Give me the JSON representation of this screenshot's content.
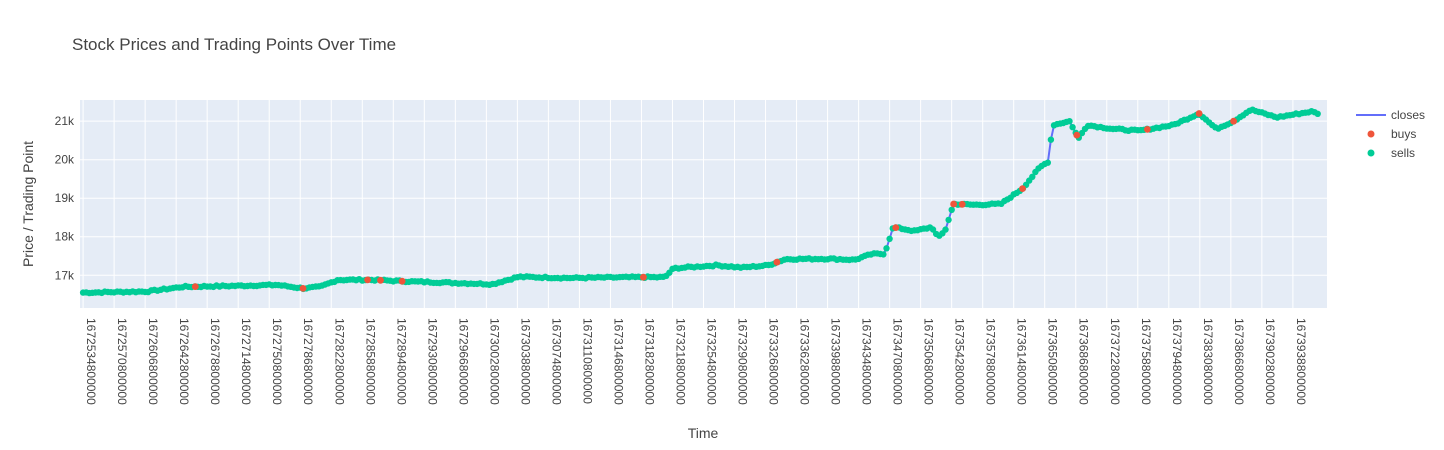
{
  "chart_data": {
    "type": "line",
    "title": "Stock Prices and Trading Points Over Time",
    "xlabel": "Time",
    "ylabel": "Price / Trading Point",
    "xlim": [
      1672531200000,
      1673978400000
    ],
    "ylim": [
      16150,
      21550
    ],
    "x_tick_step": 36000000,
    "y_ticks": [
      {
        "value": 17000,
        "label": "17k"
      },
      {
        "value": 18000,
        "label": "18k"
      },
      {
        "value": 19000,
        "label": "19k"
      },
      {
        "value": 20000,
        "label": "20k"
      },
      {
        "value": 21000,
        "label": "21k"
      }
    ],
    "legend": {
      "position": "top-right",
      "entries": [
        "closes",
        "buys",
        "sells"
      ]
    },
    "colors": {
      "closes": "#636efa",
      "buys": "#ef553b",
      "sells": "#00cc96",
      "plot_bg": "#e5ecf6"
    },
    "closes_anchors": [
      [
        1672534800000,
        16550
      ],
      [
        1672610000000,
        16580
      ],
      [
        1672650000000,
        16700
      ],
      [
        1672700000000,
        16720
      ],
      [
        1672760000000,
        16750
      ],
      [
        1672790000000,
        16660
      ],
      [
        1672810000000,
        16700
      ],
      [
        1672830000000,
        16880
      ],
      [
        1672870000000,
        16880
      ],
      [
        1672900000000,
        16850
      ],
      [
        1673010000000,
        16770
      ],
      [
        1673040000000,
        16960
      ],
      [
        1673100000000,
        16930
      ],
      [
        1673180000000,
        16950
      ],
      [
        1673210000000,
        16950
      ],
      [
        1673220000000,
        17180
      ],
      [
        1673270000000,
        17260
      ],
      [
        1673300000000,
        17200
      ],
      [
        1673330000000,
        17260
      ],
      [
        1673350000000,
        17420
      ],
      [
        1673400000000,
        17430
      ],
      [
        1673430000000,
        17400
      ],
      [
        1673450000000,
        17550
      ],
      [
        1673465000000,
        17560
      ],
      [
        1673475000000,
        18250
      ],
      [
        1673500000000,
        18150
      ],
      [
        1673520000000,
        18250
      ],
      [
        1673527000000,
        17980
      ],
      [
        1673535000000,
        18150
      ],
      [
        1673545000000,
        18850
      ],
      [
        1673570000000,
        18830
      ],
      [
        1673600000000,
        18850
      ],
      [
        1673625000000,
        19250
      ],
      [
        1673645000000,
        19800
      ],
      [
        1673655000000,
        19950
      ],
      [
        1673660000000,
        20900
      ],
      [
        1673680000000,
        21000
      ],
      [
        1673690000000,
        20550
      ],
      [
        1673700000000,
        20900
      ],
      [
        1673730000000,
        20800
      ],
      [
        1673760000000,
        20750
      ],
      [
        1673800000000,
        20900
      ],
      [
        1673830000000,
        21200
      ],
      [
        1673850000000,
        20800
      ],
      [
        1673870000000,
        21000
      ],
      [
        1673890000000,
        21300
      ],
      [
        1673920000000,
        21100
      ],
      [
        1673960000000,
        21250
      ],
      [
        1673968000000,
        21200
      ]
    ],
    "buys_x": [
      1672665000000,
      1672790000000,
      1672865000000,
      1672880000000,
      1672905000000,
      1673185000000,
      1673340000000,
      1673478000000,
      1673545000000,
      1673555000000,
      1673625000000,
      1673688000000,
      1673770000000,
      1673830000000,
      1673870000000
    ]
  }
}
